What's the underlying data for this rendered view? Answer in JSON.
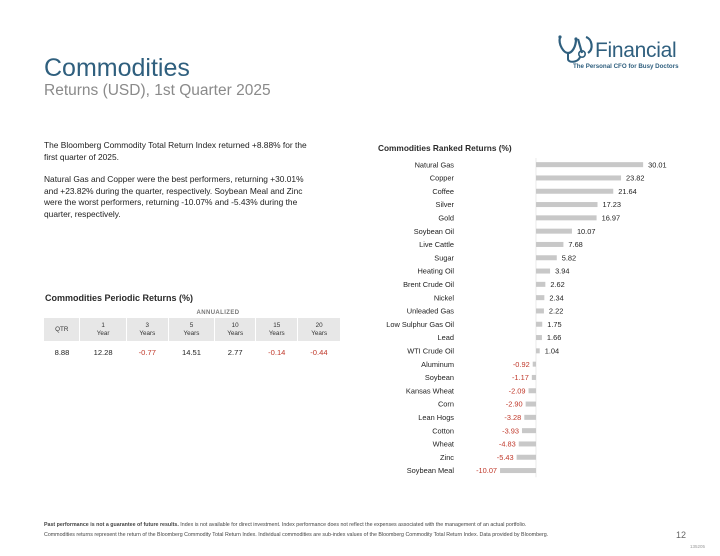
{
  "header": {
    "title": "Commodities",
    "subtitle": "Returns (USD), 1st Quarter 2025"
  },
  "logo": {
    "wordmark": "Financial",
    "mark_text": "YMD",
    "tagline": "The Personal CFO for Busy Doctors",
    "color": "#2f5f7e"
  },
  "intro": {
    "paragraph1": "The Bloomberg Commodity Total Return Index returned +8.88% for the first quarter of 2025.",
    "paragraph2": "Natural Gas and Copper were the best performers, returning +30.01% and +23.82% during the quarter, respectively. Soybean Meal and Zinc were the worst performers, returning -10.07% and -5.43% during the quarter, respectively."
  },
  "periodic": {
    "title": "Commodities Periodic Returns (%)",
    "annualized_label": "ANNUALIZED",
    "headers": [
      {
        "line1": "QTR",
        "line2": ""
      },
      {
        "line1": "1",
        "line2": "Year"
      },
      {
        "line1": "3",
        "line2": "Years"
      },
      {
        "line1": "5",
        "line2": "Years"
      },
      {
        "line1": "10",
        "line2": "Years"
      },
      {
        "line1": "15",
        "line2": "Years"
      },
      {
        "line1": "20",
        "line2": "Years"
      }
    ],
    "values": [
      "8.88",
      "12.28",
      "-0.77",
      "14.51",
      "2.77",
      "-0.14",
      "-0.44"
    ]
  },
  "chart_data": {
    "type": "bar",
    "orientation": "horizontal",
    "title": "Commodities Ranked Returns (%)",
    "categories": [
      "Natural Gas",
      "Copper",
      "Coffee",
      "Silver",
      "Gold",
      "Soybean Oil",
      "Live Cattle",
      "Sugar",
      "Heating Oil",
      "Brent Crude Oil",
      "Nickel",
      "Unleaded Gas",
      "Low Sulphur Gas Oil",
      "Lead",
      "WTI Crude Oil",
      "Aluminum",
      "Soybean",
      "Kansas Wheat",
      "Corn",
      "Lean Hogs",
      "Cotton",
      "Wheat",
      "Zinc",
      "Soybean Meal"
    ],
    "values": [
      30.01,
      23.82,
      21.64,
      17.23,
      16.97,
      10.07,
      7.68,
      5.82,
      3.94,
      2.62,
      2.34,
      2.22,
      1.75,
      1.66,
      1.04,
      -0.92,
      -1.17,
      -2.09,
      -2.9,
      -3.28,
      -3.93,
      -4.83,
      -5.43,
      -10.07
    ],
    "labels": [
      "30.01",
      "23.82",
      "21.64",
      "17.23",
      "16.97",
      "10.07",
      "7.68",
      "5.82",
      "3.94",
      "2.62",
      "2.34",
      "2.22",
      "1.75",
      "1.66",
      "1.04",
      "-0.92",
      "-1.17",
      "-2.09",
      "-2.90",
      "-3.28",
      "-3.93",
      "-4.83",
      "-5.43",
      "-10.07"
    ],
    "bar_color": "#c8c8c8",
    "negative_label_color": "#c0392b",
    "grid": false,
    "legend": "none"
  },
  "footer": {
    "bold": "Past performance is not a guarantee of future results.",
    "line1_rest": " Index is not available for direct investment. Index performance does not reflect the expenses associated with the management of an actual portfolio.",
    "line2": "Commodities returns represent the return of the Bloomberg Commodity Total Return Index. Individual commodities are sub-index values of the Bloomberg Commodity Total Return Index. Data provided by Bloomberg.",
    "page_number": "12",
    "doc_id": "135205"
  }
}
